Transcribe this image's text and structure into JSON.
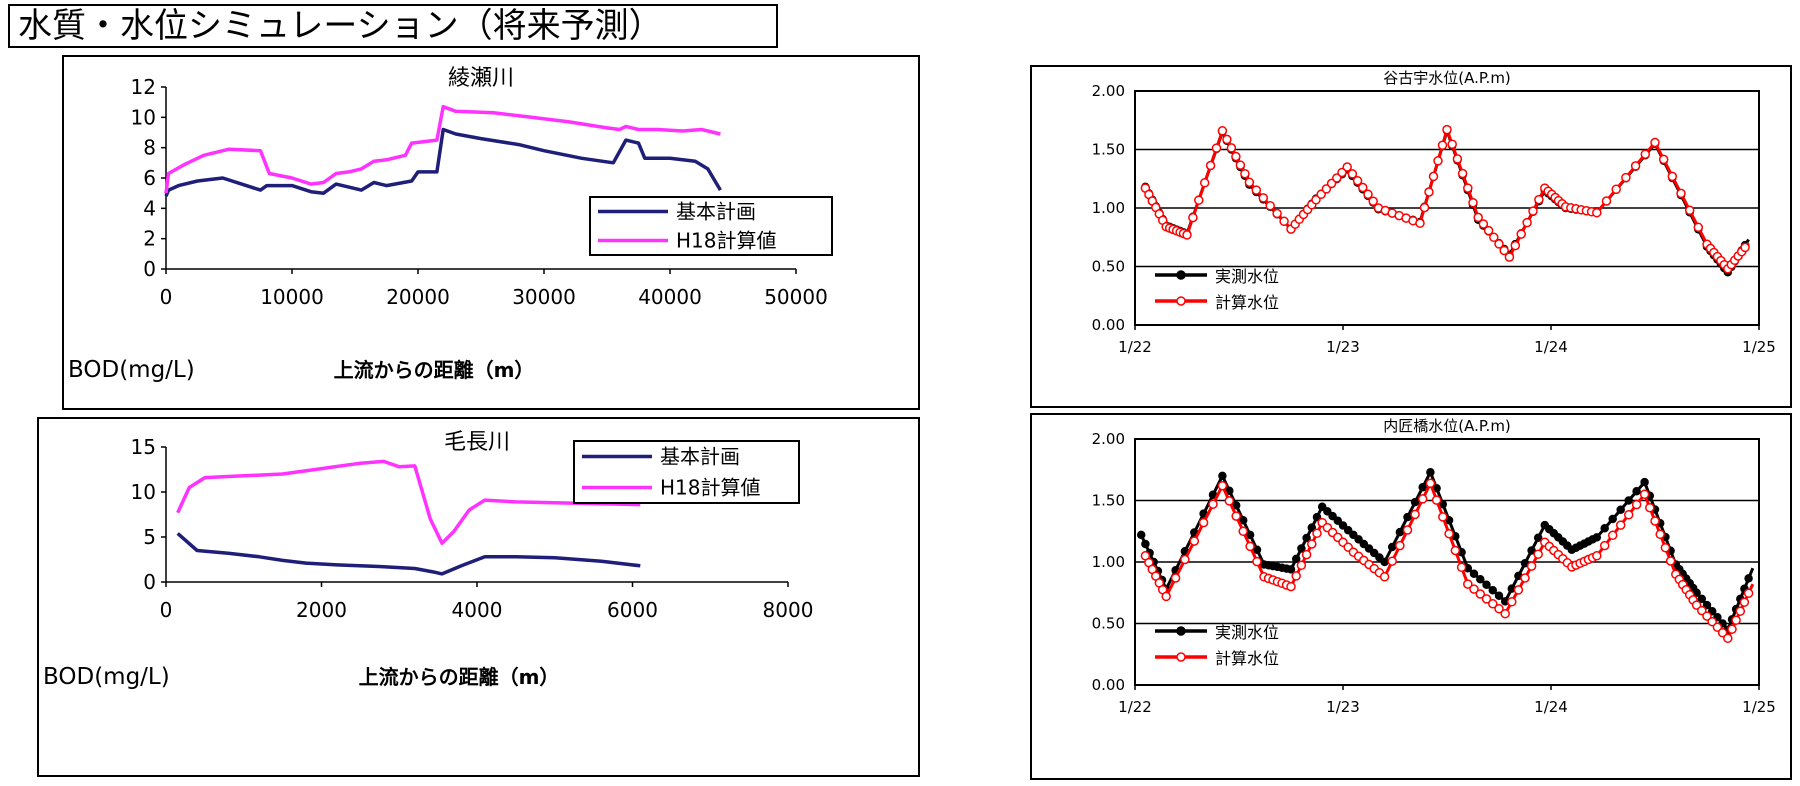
{
  "page_title": "水質・水位シミュレーション（将来予測）",
  "colors": {
    "blue": "#1f1f7a",
    "magenta": "#ff33ff",
    "red": "#ff0000",
    "black": "#000000"
  },
  "chart_data": [
    {
      "id": "ayase",
      "type": "line",
      "title": "綾瀬川",
      "xlabel": "上流からの距離（m）",
      "ylabel": "BOD(mg/L)",
      "xlim": [
        0,
        50000
      ],
      "ylim": [
        0,
        12
      ],
      "xticks": [
        0,
        10000,
        20000,
        30000,
        40000,
        50000
      ],
      "yticks": [
        0,
        2,
        4,
        6,
        8,
        10,
        12
      ],
      "grid": false,
      "legend": "right-middle",
      "series": [
        {
          "name": "基本計画",
          "color": "#1f1f7a",
          "x": [
            0,
            200,
            1000,
            2500,
            4500,
            6000,
            7500,
            8000,
            10000,
            11500,
            12500,
            13500,
            14500,
            15500,
            16500,
            17500,
            19500,
            20000,
            21500,
            22000,
            23000,
            25000,
            28000,
            30000,
            33000,
            35500,
            36500,
            37500,
            38000,
            40000,
            42000,
            43000,
            44000
          ],
          "values": [
            4.8,
            5.2,
            5.5,
            5.8,
            6.0,
            5.6,
            5.2,
            5.5,
            5.5,
            5.1,
            5.0,
            5.6,
            5.4,
            5.2,
            5.7,
            5.5,
            5.8,
            6.4,
            6.4,
            9.2,
            8.9,
            8.6,
            8.2,
            7.8,
            7.3,
            7.0,
            8.5,
            8.3,
            7.3,
            7.3,
            7.1,
            6.6,
            5.2
          ]
        },
        {
          "name": "H18計算値",
          "color": "#ff33ff",
          "x": [
            0,
            200,
            1500,
            3000,
            5000,
            7500,
            8200,
            10000,
            11500,
            12500,
            13500,
            14500,
            15500,
            16500,
            17500,
            19000,
            19500,
            21500,
            22000,
            23000,
            26000,
            29000,
            32000,
            35000,
            36000,
            36500,
            37500,
            39000,
            41000,
            42500,
            43500,
            44000
          ],
          "values": [
            5.0,
            6.3,
            6.9,
            7.5,
            7.9,
            7.8,
            6.3,
            6.0,
            5.6,
            5.7,
            6.3,
            6.4,
            6.6,
            7.1,
            7.2,
            7.5,
            8.3,
            8.5,
            10.7,
            10.4,
            10.3,
            10.0,
            9.7,
            9.3,
            9.2,
            9.4,
            9.2,
            9.2,
            9.1,
            9.2,
            9.0,
            8.9
          ]
        }
      ]
    },
    {
      "id": "kenaga",
      "type": "line",
      "title": "毛長川",
      "xlabel": "上流からの距離（m）",
      "ylabel": "BOD(mg/L)",
      "xlim": [
        0,
        8000
      ],
      "ylim": [
        0,
        15
      ],
      "xticks": [
        0,
        2000,
        4000,
        6000,
        8000
      ],
      "yticks": [
        0,
        5,
        10,
        15
      ],
      "grid": false,
      "legend": "top-right",
      "series": [
        {
          "name": "基本計画",
          "color": "#1f1f7a",
          "x": [
            150,
            400,
            800,
            1200,
            1500,
            1800,
            2200,
            2800,
            3200,
            3450,
            3550,
            3800,
            4100,
            4500,
            5000,
            5600,
            6100
          ],
          "values": [
            5.4,
            3.5,
            3.2,
            2.8,
            2.4,
            2.1,
            1.9,
            1.7,
            1.5,
            1.1,
            0.9,
            1.8,
            2.8,
            2.8,
            2.7,
            2.3,
            1.8
          ]
        },
        {
          "name": "H18計算値",
          "color": "#ff33ff",
          "x": [
            150,
            300,
            500,
            1000,
            1500,
            2000,
            2500,
            2800,
            3000,
            3200,
            3400,
            3550,
            3700,
            3900,
            4100,
            4500,
            5000,
            6100
          ],
          "values": [
            7.7,
            10.5,
            11.6,
            11.8,
            12.0,
            12.6,
            13.2,
            13.4,
            12.8,
            12.9,
            7.0,
            4.3,
            5.6,
            8.0,
            9.1,
            8.9,
            8.8,
            8.6
          ]
        }
      ]
    },
    {
      "id": "yakoshi",
      "type": "line",
      "title": "谷古宇水位(A.P.m)",
      "xlim": [
        0,
        3
      ],
      "ylim": [
        0,
        2
      ],
      "xticks": [
        "1/22",
        "1/23",
        "1/24",
        "1/25"
      ],
      "yticks": [
        "0.00",
        "0.50",
        "1.00",
        "1.50",
        "2.00"
      ],
      "grid": true,
      "legend": "bottom-left",
      "series": [
        {
          "name": "実測水位",
          "color": "#000000",
          "marker": "filled-circle",
          "x": [
            0.05,
            0.15,
            0.25,
            0.42,
            0.55,
            0.75,
            0.87,
            1.02,
            1.17,
            1.37,
            1.5,
            1.65,
            1.8,
            1.97,
            2.07,
            2.22,
            2.5,
            2.75,
            2.85,
            2.95
          ],
          "values": [
            1.18,
            0.85,
            0.78,
            1.65,
            1.2,
            0.82,
            1.08,
            1.33,
            0.99,
            0.88,
            1.66,
            0.9,
            0.6,
            1.15,
            1.0,
            0.96,
            1.55,
            0.67,
            0.45,
            0.73
          ]
        },
        {
          "name": "計算水位",
          "color": "#ff0000",
          "marker": "open-circle",
          "x": [
            0.05,
            0.15,
            0.25,
            0.42,
            0.55,
            0.75,
            0.87,
            1.02,
            1.17,
            1.37,
            1.5,
            1.65,
            1.8,
            1.97,
            2.07,
            2.22,
            2.5,
            2.75,
            2.85,
            2.95
          ],
          "values": [
            1.17,
            0.84,
            0.77,
            1.66,
            1.22,
            0.82,
            1.07,
            1.35,
            1.0,
            0.87,
            1.67,
            0.92,
            0.58,
            1.17,
            1.01,
            0.96,
            1.56,
            0.69,
            0.48,
            0.7
          ]
        }
      ]
    },
    {
      "id": "uchitakumi",
      "type": "line",
      "title": "内匠橋水位(A.P.m)",
      "xlim": [
        0,
        3
      ],
      "ylim": [
        0,
        2
      ],
      "xticks": [
        "1/22",
        "1/23",
        "1/24",
        "1/25"
      ],
      "yticks": [
        "0.00",
        "0.50",
        "1.00",
        "1.50",
        "2.00"
      ],
      "grid": true,
      "legend": "bottom-left",
      "series": [
        {
          "name": "実測水位",
          "color": "#000000",
          "marker": "filled-circle",
          "x": [
            0.03,
            0.15,
            0.42,
            0.62,
            0.75,
            0.9,
            1.05,
            1.2,
            1.42,
            1.6,
            1.78,
            1.97,
            2.1,
            2.22,
            2.45,
            2.6,
            2.7,
            2.85,
            2.97
          ],
          "values": [
            1.22,
            0.78,
            1.7,
            0.98,
            0.94,
            1.45,
            1.22,
            1.0,
            1.73,
            0.95,
            0.68,
            1.3,
            1.1,
            1.2,
            1.65,
            0.98,
            0.75,
            0.45,
            0.95
          ]
        },
        {
          "name": "計算水位",
          "color": "#ff0000",
          "marker": "open-circle",
          "x": [
            0.05,
            0.15,
            0.42,
            0.62,
            0.75,
            0.9,
            1.05,
            1.2,
            1.42,
            1.6,
            1.78,
            1.97,
            2.1,
            2.22,
            2.45,
            2.6,
            2.7,
            2.85,
            2.97
          ],
          "values": [
            1.05,
            0.72,
            1.62,
            0.88,
            0.8,
            1.32,
            1.08,
            0.88,
            1.64,
            0.82,
            0.58,
            1.16,
            0.96,
            1.05,
            1.55,
            0.9,
            0.65,
            0.38,
            0.82
          ]
        }
      ]
    }
  ]
}
